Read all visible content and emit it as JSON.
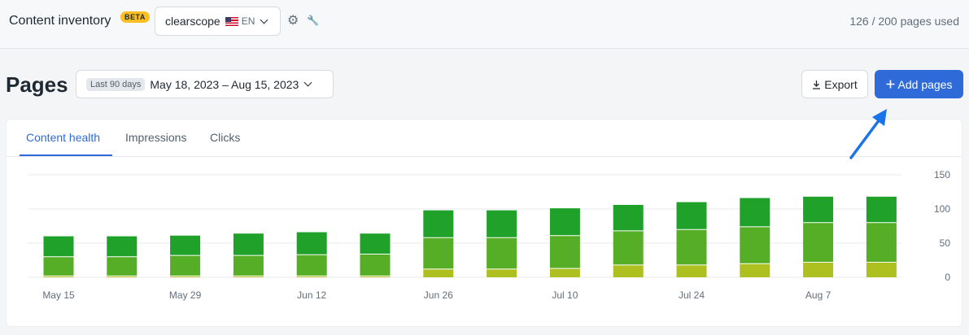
{
  "header": {
    "title": "Content inventory",
    "badge": "BETA",
    "site": "clearscope",
    "language": "EN",
    "usage": "126 / 200 pages used",
    "icons": [
      "settings-icon",
      "wrench-icon",
      "us-flag-icon",
      "chevron-down-icon"
    ]
  },
  "toolbar": {
    "page_title": "Pages",
    "date_chip": "Last 90 days",
    "date_range": "May 18, 2023 – Aug 15, 2023",
    "export_label": "Export",
    "add_label": "Add pages"
  },
  "tabs": [
    {
      "label": "Content health",
      "active": true
    },
    {
      "label": "Impressions",
      "active": false
    },
    {
      "label": "Clicks",
      "active": false
    }
  ],
  "colors": {
    "accent": "#2f6bd8",
    "dark_green": "#1fa12a",
    "mid_green": "#56ad26",
    "yellow_green": "#aec020"
  },
  "chart_data": {
    "type": "bar",
    "stacked": true,
    "x_tick_labels": [
      "May 15",
      "May 29",
      "Jun 12",
      "Jun 26",
      "Jul 10",
      "Jul 24",
      "Aug 7"
    ],
    "yticks": [
      0,
      50,
      100,
      150
    ],
    "ylim": [
      0,
      150
    ],
    "y_axis_side": "right",
    "grid": true,
    "series": [
      {
        "color": "#aec020",
        "values": [
          2,
          2,
          2,
          2,
          2,
          2,
          12,
          12,
          13,
          18,
          18,
          20,
          22,
          22
        ]
      },
      {
        "color": "#56ad26",
        "values": [
          28,
          28,
          30,
          30,
          31,
          32,
          46,
          46,
          48,
          50,
          52,
          54,
          58,
          58
        ]
      },
      {
        "color": "#1fa12a",
        "values": [
          30,
          30,
          29,
          32,
          33,
          30,
          40,
          40,
          40,
          38,
          40,
          42,
          38,
          38
        ]
      }
    ]
  }
}
